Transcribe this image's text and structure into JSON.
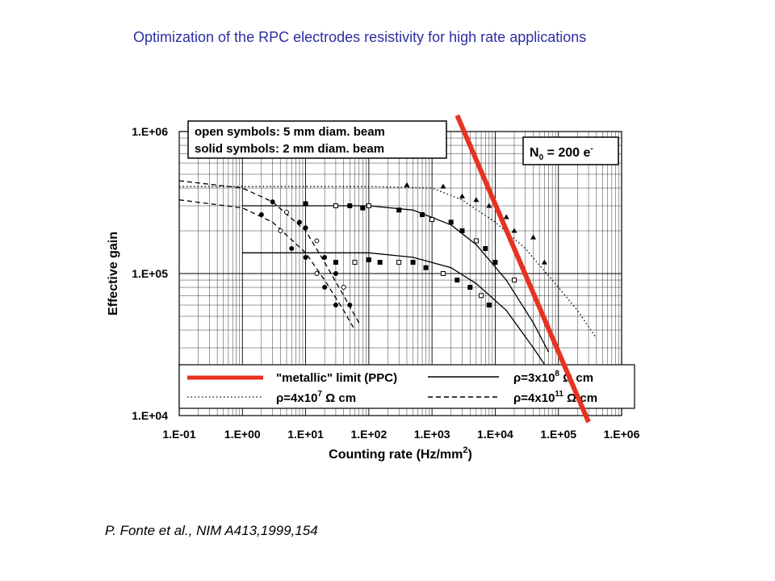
{
  "slide": {
    "title": "Optimization of the RPC electrodes resistivity for high rate applications",
    "citation": "P. Fonte et al., NIM A413,1999,154"
  },
  "chart_data": {
    "type": "scatter",
    "xlabel": "Counting rate (Hz/mm",
    "xlabel_sup": "2",
    "xlabel_tail": ")",
    "ylabel": "Effective gain",
    "x_scale": "log",
    "y_scale": "log",
    "xlim": [
      0.1,
      1000000
    ],
    "ylim": [
      10000,
      1000000
    ],
    "x_ticks": [
      {
        "value": 0.1,
        "label": "1.E-01"
      },
      {
        "value": 1,
        "label": "1.E+00"
      },
      {
        "value": 10,
        "label": "1.E+01"
      },
      {
        "value": 100,
        "label": "1.E+02"
      },
      {
        "value": 1000,
        "label": "1.E+03"
      },
      {
        "value": 10000,
        "label": "1.E+04"
      },
      {
        "value": 100000,
        "label": "1.E+05"
      },
      {
        "value": 1000000,
        "label": "1.E+06"
      }
    ],
    "y_ticks": [
      {
        "value": 10000,
        "label": "1.E+04"
      },
      {
        "value": 100000,
        "label": "1.E+05"
      },
      {
        "value": 1000000,
        "label": "1.E+06"
      }
    ],
    "grid": true,
    "annotations": {
      "symbols_line1": "open symbols: 5 mm diam. beam",
      "symbols_line2": "solid symbols: 2 mm diam. beam",
      "n0_main": "N",
      "n0_sub": "0",
      "n0_rest": " = 200 e",
      "n0_sup": "-"
    },
    "legend": {
      "placement": "bottom",
      "entries": [
        {
          "label": "\"metallic\" limit (PPC)",
          "style": "thick-red",
          "color": "#e8321e"
        },
        {
          "label_pre": "ρ=3x10",
          "label_exp": "8",
          "label_post": " Ω cm",
          "style": "solid",
          "color": "#000000"
        },
        {
          "label_pre": "ρ=4x10",
          "label_exp": "7",
          "label_post": " Ω cm",
          "style": "dotted",
          "color": "#000000"
        },
        {
          "label_pre": "ρ=4x10",
          "label_exp": "11",
          "label_post": " Ω cm",
          "style": "dashed",
          "color": "#000000"
        }
      ]
    },
    "series": [
      {
        "label": "ρ=4x10^7 Ω cm",
        "style": "dotted",
        "curve": [
          [
            0.1,
            410000
          ],
          [
            100,
            410000
          ],
          [
            1000,
            400000
          ],
          [
            3000,
            330000
          ],
          [
            10000,
            230000
          ],
          [
            30000,
            150000
          ],
          [
            100000,
            80000
          ],
          [
            200000,
            55000
          ],
          [
            400000,
            35000
          ]
        ],
        "points": [
          [
            400,
            420000
          ],
          [
            1500,
            410000
          ],
          [
            3000,
            350000
          ],
          [
            5000,
            330000
          ],
          [
            8000,
            300000
          ],
          [
            15000,
            250000
          ],
          [
            20000,
            200000
          ],
          [
            40000,
            180000
          ],
          [
            60000,
            120000
          ]
        ]
      },
      {
        "label": "ρ=3x10^8 Ω cm (upper)",
        "style": "solid",
        "curve": [
          [
            1,
            300000
          ],
          [
            100,
            300000
          ],
          [
            500,
            280000
          ],
          [
            2000,
            220000
          ],
          [
            5000,
            160000
          ],
          [
            15000,
            90000
          ],
          [
            40000,
            45000
          ],
          [
            70000,
            28000
          ]
        ],
        "points": [
          [
            10,
            310000
          ],
          [
            30,
            300000
          ],
          [
            50,
            300000
          ],
          [
            80,
            290000
          ],
          [
            100,
            300000
          ],
          [
            300,
            280000
          ],
          [
            700,
            260000
          ],
          [
            1000,
            240000
          ],
          [
            2000,
            230000
          ],
          [
            3000,
            200000
          ],
          [
            5000,
            170000
          ],
          [
            7000,
            150000
          ],
          [
            10000,
            120000
          ],
          [
            20000,
            90000
          ]
        ]
      },
      {
        "label": "ρ=3x10^8 Ω cm (lower)",
        "style": "solid",
        "curve": [
          [
            1,
            140000
          ],
          [
            100,
            140000
          ],
          [
            500,
            130000
          ],
          [
            2000,
            110000
          ],
          [
            5000,
            85000
          ],
          [
            15000,
            55000
          ],
          [
            40000,
            30000
          ],
          [
            60000,
            23000
          ]
        ],
        "points": [
          [
            30,
            120000
          ],
          [
            60,
            120000
          ],
          [
            100,
            125000
          ],
          [
            150,
            120000
          ],
          [
            300,
            120000
          ],
          [
            500,
            120000
          ],
          [
            800,
            110000
          ],
          [
            1500,
            100000
          ],
          [
            2500,
            90000
          ],
          [
            4000,
            80000
          ],
          [
            6000,
            70000
          ],
          [
            8000,
            60000
          ]
        ]
      },
      {
        "label": "ρ=4x10^11 Ω cm (upper)",
        "style": "dashed",
        "curve": [
          [
            0.1,
            450000
          ],
          [
            1,
            400000
          ],
          [
            3,
            320000
          ],
          [
            10,
            200000
          ],
          [
            20,
            120000
          ],
          [
            40,
            70000
          ],
          [
            70,
            45000
          ]
        ],
        "points": [
          [
            3,
            320000
          ],
          [
            5,
            270000
          ],
          [
            8,
            230000
          ],
          [
            10,
            210000
          ],
          [
            15,
            170000
          ],
          [
            20,
            130000
          ],
          [
            30,
            100000
          ],
          [
            40,
            80000
          ],
          [
            50,
            60000
          ]
        ]
      },
      {
        "label": "ρ=4x10^11 Ω cm (lower)",
        "style": "dashed",
        "curve": [
          [
            0.1,
            330000
          ],
          [
            1,
            290000
          ],
          [
            3,
            230000
          ],
          [
            10,
            140000
          ],
          [
            20,
            90000
          ],
          [
            40,
            55000
          ],
          [
            60,
            40000
          ]
        ],
        "points": [
          [
            2,
            260000
          ],
          [
            4,
            200000
          ],
          [
            6,
            150000
          ],
          [
            10,
            130000
          ],
          [
            15,
            100000
          ],
          [
            20,
            80000
          ],
          [
            30,
            60000
          ]
        ]
      }
    ],
    "metallic_limit": {
      "points": [
        [
          2500,
          1300000
        ],
        [
          300000,
          9000
        ]
      ]
    }
  }
}
